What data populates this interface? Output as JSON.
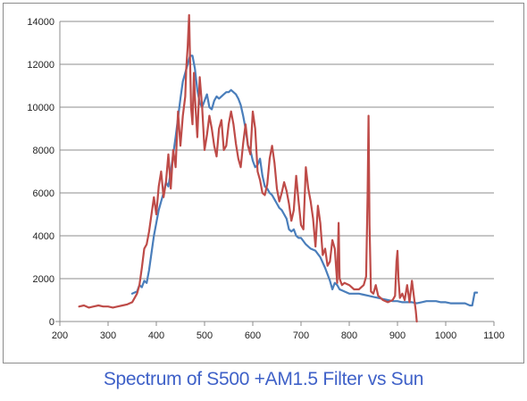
{
  "chart_data": {
    "type": "line",
    "title": "Spectrum of S500 +AM1.5 Filter vs Sun",
    "xlabel": "",
    "ylabel": "",
    "xlim": [
      200,
      1100
    ],
    "ylim": [
      0,
      14000
    ],
    "x_ticks": [
      200,
      300,
      400,
      500,
      600,
      700,
      800,
      900,
      1000,
      1100
    ],
    "y_ticks": [
      0,
      2000,
      4000,
      6000,
      8000,
      10000,
      12000,
      14000
    ],
    "grid": "horizontal",
    "legend": "none",
    "series": [
      {
        "color": "#4a7ebb",
        "x": [
          350,
          360,
          365,
          370,
          375,
          380,
          385,
          390,
          395,
          400,
          405,
          410,
          415,
          420,
          425,
          430,
          435,
          440,
          445,
          450,
          455,
          460,
          465,
          470,
          475,
          480,
          485,
          490,
          495,
          500,
          505,
          510,
          515,
          520,
          525,
          530,
          535,
          540,
          545,
          550,
          555,
          560,
          565,
          570,
          575,
          580,
          585,
          590,
          595,
          600,
          605,
          610,
          615,
          620,
          625,
          630,
          635,
          640,
          645,
          650,
          655,
          660,
          665,
          670,
          675,
          680,
          685,
          690,
          695,
          700,
          710,
          720,
          730,
          740,
          750,
          760,
          765,
          770,
          775,
          780,
          790,
          800,
          810,
          820,
          830,
          840,
          850,
          860,
          870,
          880,
          890,
          900,
          910,
          920,
          930,
          940,
          950,
          960,
          970,
          980,
          990,
          1000,
          1010,
          1020,
          1030,
          1040,
          1050,
          1055,
          1060,
          1065
        ],
        "y": [
          1300,
          1400,
          1700,
          1600,
          1900,
          1800,
          2400,
          3200,
          4000,
          4600,
          5200,
          5600,
          6000,
          6500,
          6300,
          7000,
          7800,
          8600,
          9500,
          10400,
          11200,
          11600,
          12000,
          12400,
          12400,
          11800,
          10800,
          10200,
          10000,
          10300,
          10600,
          10000,
          9900,
          10300,
          10500,
          10400,
          10500,
          10600,
          10700,
          10700,
          10800,
          10700,
          10600,
          10400,
          10100,
          9600,
          9000,
          8200,
          8000,
          7500,
          7200,
          7300,
          7600,
          6800,
          6300,
          6200,
          6000,
          5900,
          5700,
          5500,
          5300,
          5200,
          5000,
          4800,
          4300,
          4200,
          4300,
          4000,
          3900,
          3900,
          3600,
          3400,
          3300,
          3000,
          2500,
          1900,
          1500,
          1800,
          1700,
          1500,
          1400,
          1300,
          1300,
          1300,
          1250,
          1200,
          1150,
          1100,
          1050,
          1000,
          950,
          950,
          900,
          900,
          900,
          850,
          900,
          950,
          950,
          950,
          900,
          900,
          850,
          850,
          850,
          850,
          750,
          750,
          1350,
          1350
        ]
      },
      {
        "color": "#be4b48",
        "x": [
          240,
          250,
          260,
          270,
          280,
          290,
          300,
          310,
          320,
          330,
          340,
          350,
          360,
          365,
          370,
          375,
          380,
          385,
          390,
          395,
          400,
          405,
          410,
          415,
          420,
          425,
          430,
          435,
          440,
          445,
          450,
          455,
          460,
          462,
          465,
          468,
          470,
          472,
          475,
          478,
          480,
          485,
          490,
          495,
          500,
          505,
          510,
          515,
          520,
          525,
          530,
          535,
          540,
          545,
          550,
          555,
          560,
          565,
          570,
          575,
          580,
          585,
          590,
          595,
          600,
          605,
          610,
          615,
          620,
          625,
          630,
          635,
          640,
          645,
          650,
          655,
          660,
          665,
          670,
          675,
          680,
          685,
          690,
          695,
          700,
          705,
          710,
          715,
          720,
          725,
          730,
          735,
          740,
          745,
          750,
          755,
          760,
          765,
          770,
          775,
          778,
          780,
          785,
          790,
          800,
          810,
          820,
          830,
          835,
          838,
          840,
          842,
          845,
          850,
          855,
          860,
          870,
          880,
          890,
          895,
          898,
          900,
          902,
          905,
          910,
          915,
          920,
          925,
          930,
          935,
          938,
          940
        ],
        "y": [
          700,
          750,
          650,
          700,
          750,
          700,
          700,
          650,
          700,
          750,
          800,
          900,
          1300,
          1700,
          2500,
          3400,
          3600,
          4200,
          5000,
          5800,
          5000,
          6300,
          7000,
          5800,
          6500,
          7800,
          6200,
          8000,
          7200,
          9800,
          8200,
          9600,
          10500,
          11800,
          12800,
          14300,
          12200,
          10000,
          9200,
          11600,
          10500,
          8600,
          11400,
          10000,
          8000,
          8700,
          9600,
          9000,
          8200,
          7700,
          9000,
          9400,
          8000,
          8200,
          9200,
          9800,
          9200,
          8300,
          7600,
          7200,
          8300,
          9200,
          8200,
          7800,
          9800,
          9000,
          7000,
          6600,
          6000,
          5900,
          6400,
          7600,
          8200,
          7400,
          6200,
          5600,
          6000,
          6500,
          6100,
          5500,
          4700,
          5200,
          6800,
          5600,
          4500,
          4300,
          7200,
          6200,
          5600,
          4800,
          3500,
          5400,
          4600,
          3100,
          3400,
          2600,
          2800,
          3800,
          3400,
          1800,
          4600,
          2000,
          1700,
          1800,
          1700,
          1500,
          1500,
          1700,
          2100,
          5800,
          9600,
          4500,
          1400,
          1300,
          1700,
          1200,
          1000,
          900,
          1000,
          1200,
          2800,
          3300,
          2000,
          1100,
          1300,
          1000,
          1700,
          900,
          1900,
          1000,
          500,
          0
        ]
      }
    ]
  }
}
